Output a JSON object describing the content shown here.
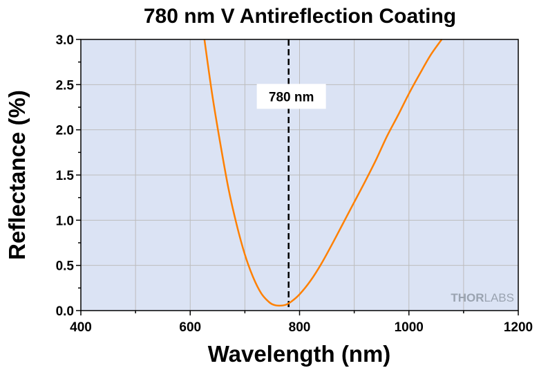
{
  "chart_data": {
    "type": "line",
    "title": "780 nm V Antireflection Coating",
    "xlabel": "Wavelength (nm)",
    "ylabel": "Reflectance (%)",
    "xlim": [
      400,
      1200
    ],
    "ylim": [
      0,
      3.0
    ],
    "xticks": [
      400,
      600,
      800,
      1000,
      1200
    ],
    "xtick_labels": [
      "400",
      "600",
      "800",
      "1000",
      "1200"
    ],
    "yticks": [
      0,
      0.5,
      1.0,
      1.5,
      2.0,
      2.5,
      3.0
    ],
    "ytick_labels": [
      "0.0",
      "0.5",
      "1.0",
      "1.5",
      "2.0",
      "2.5",
      "3.0"
    ],
    "grid": true,
    "background_color": "#dbe3f4",
    "line_color": "#ff8000",
    "series": [
      {
        "x": [
          626,
          640,
          655,
          670,
          685,
          700,
          715,
          730,
          745,
          755,
          765,
          775,
          785,
          800,
          820,
          840,
          860,
          880,
          900,
          920,
          940,
          960,
          980,
          1000,
          1020,
          1040,
          1060
        ],
        "y": [
          3.0,
          2.4,
          1.85,
          1.35,
          0.95,
          0.62,
          0.37,
          0.19,
          0.09,
          0.06,
          0.055,
          0.065,
          0.1,
          0.18,
          0.33,
          0.52,
          0.74,
          0.97,
          1.2,
          1.43,
          1.67,
          1.93,
          2.16,
          2.4,
          2.62,
          2.83,
          3.0
        ]
      }
    ],
    "reference_line": {
      "x": 780,
      "style": "dashed",
      "color": "#000000"
    },
    "annotation": {
      "text": "780 nm",
      "x": 785,
      "y": 2.37
    }
  },
  "watermark": {
    "part1": "THOR",
    "part2": "LABS"
  }
}
